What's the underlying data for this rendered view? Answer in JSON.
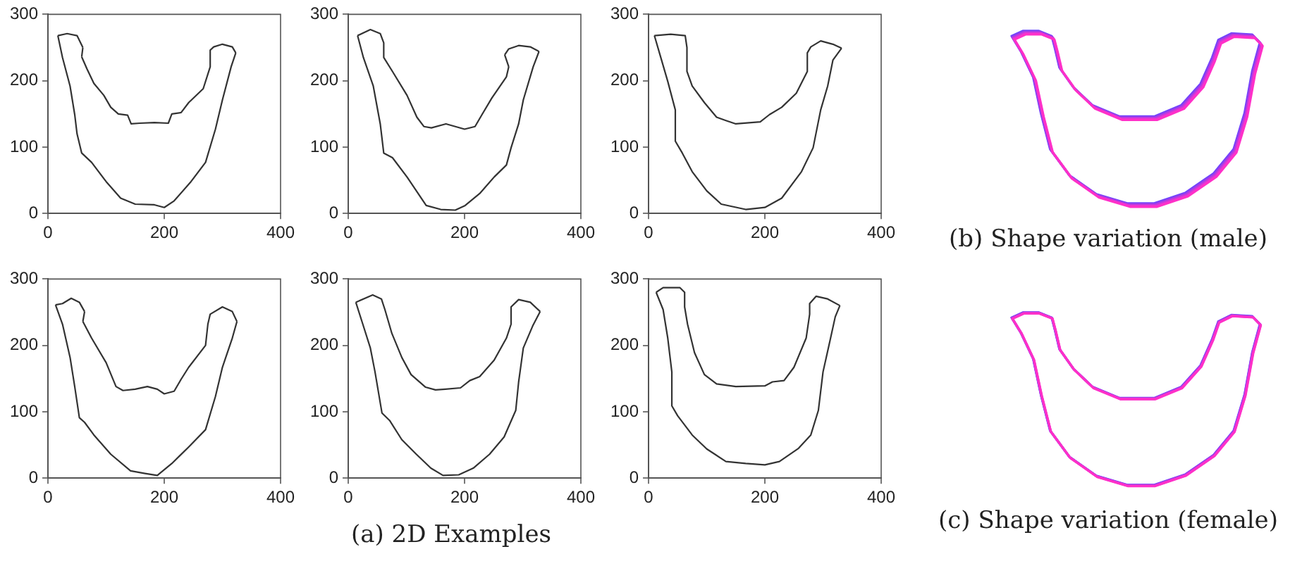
{
  "chart_data": [
    {
      "type": "line",
      "xlim": [
        0,
        400
      ],
      "xticks": [
        0,
        200,
        400
      ],
      "ylim": [
        0,
        300
      ],
      "yticks": [
        0,
        100,
        200,
        300
      ],
      "series": [
        {
          "color": "#333333",
          "x": [
            17,
            33,
            50,
            60
          ],
          "values": [
            268,
            271,
            268,
            250
          ]
        },
        {
          "color": "#333333",
          "x": [
            60,
            58
          ],
          "values": [
            250,
            236
          ]
        },
        {
          "color": "#333333",
          "x": [
            58,
            67,
            79,
            96,
            108,
            121,
            137,
            143,
            158,
            183,
            207,
            213,
            229,
            242,
            267,
            279,
            279,
            285,
            300,
            317,
            323
          ],
          "values": [
            236,
            218,
            196,
            178,
            160,
            150,
            148,
            135,
            136,
            137,
            136,
            150,
            152,
            167,
            188,
            221,
            246,
            251,
            255,
            251,
            242
          ]
        },
        {
          "color": "#333333",
          "x": [
            323,
            315,
            300,
            288,
            271,
            246,
            217,
            200,
            183,
            150,
            125,
            100,
            75,
            58,
            50,
            46,
            38,
            25,
            17
          ],
          "values": [
            242,
            221,
            171,
            127,
            77,
            48,
            19,
            9,
            13,
            14,
            23,
            48,
            77,
            91,
            120,
            149,
            192,
            235,
            268
          ]
        }
      ]
    },
    {
      "type": "line",
      "xlim": [
        0,
        400
      ],
      "xticks": [
        0,
        200,
        400
      ],
      "ylim": [
        0,
        300
      ],
      "yticks": [
        0,
        100,
        200,
        300
      ],
      "series": [
        {
          "color": "#333333",
          "x": [
            16,
            38,
            55,
            61,
            61,
            76,
            101,
            118,
            130,
            143,
            168,
            200,
            218,
            230,
            247,
            272,
            276
          ],
          "values": [
            268,
            277,
            271,
            257,
            235,
            214,
            178,
            145,
            131,
            129,
            135,
            127,
            131,
            149,
            174,
            206,
            221
          ]
        },
        {
          "color": "#333333",
          "x": [
            276,
            269
          ],
          "values": [
            221,
            239
          ]
        },
        {
          "color": "#333333",
          "x": [
            269,
            276,
            293,
            313,
            328
          ],
          "values": [
            239,
            248,
            253,
            251,
            244
          ]
        },
        {
          "color": "#333333",
          "x": [
            328,
            318,
            301,
            293,
            280,
            272,
            251,
            226,
            201,
            184,
            159,
            134,
            101,
            76,
            61,
            55,
            43,
            26,
            16
          ],
          "values": [
            244,
            221,
            171,
            135,
            99,
            73,
            55,
            30,
            12,
            5,
            6,
            12,
            55,
            84,
            91,
            135,
            192,
            235,
            268
          ]
        }
      ]
    },
    {
      "type": "line",
      "xlim": [
        0,
        400
      ],
      "xticks": [
        0,
        200,
        400
      ],
      "ylim": [
        0,
        300
      ],
      "yticks": [
        0,
        100,
        200,
        300
      ],
      "series": [
        {
          "color": "#333333",
          "x": [
            10,
            38,
            63,
            66,
            66,
            75,
            96,
            117,
            133,
            150,
            192,
            208,
            229,
            254,
            273,
            273,
            279,
            296,
            317,
            332
          ],
          "values": [
            268,
            270,
            268,
            250,
            214,
            192,
            167,
            145,
            140,
            135,
            138,
            149,
            160,
            181,
            214,
            242,
            251,
            260,
            255,
            249
          ]
        },
        {
          "color": "#333333",
          "x": [
            332,
            317,
            308,
            296,
            283,
            263,
            229,
            200,
            167,
            125,
            100,
            75,
            58,
            46,
            46,
            33,
            21,
            10
          ],
          "values": [
            249,
            231,
            192,
            156,
            99,
            63,
            23,
            9,
            6,
            14,
            34,
            63,
            91,
            109,
            156,
            199,
            235,
            268
          ]
        }
      ]
    },
    {
      "type": "line",
      "xlim": [
        0,
        400
      ],
      "xticks": [
        0,
        200,
        400
      ],
      "ylim": [
        0,
        300
      ],
      "yticks": [
        0,
        100,
        200,
        300
      ],
      "series": [
        {
          "color": "#333333",
          "x": [
            13,
            25,
            40,
            54,
            63
          ],
          "values": [
            261,
            263,
            271,
            265,
            251
          ]
        },
        {
          "color": "#333333",
          "x": [
            63,
            60
          ],
          "values": [
            251,
            236
          ]
        },
        {
          "color": "#333333",
          "x": [
            60,
            75,
            100,
            117,
            129,
            150,
            171,
            188,
            200,
            217,
            229,
            242,
            271,
            275,
            279,
            300,
            317,
            325
          ],
          "values": [
            236,
            211,
            174,
            138,
            132,
            134,
            138,
            134,
            127,
            131,
            149,
            167,
            200,
            232,
            247,
            258,
            251,
            236
          ]
        },
        {
          "color": "#333333",
          "x": [
            325,
            317,
            300,
            288,
            271,
            242,
            213,
            188,
            167,
            142,
            108,
            79,
            63,
            54,
            46,
            38,
            25,
            13
          ],
          "values": [
            236,
            211,
            167,
            123,
            73,
            47,
            22,
            4,
            7,
            11,
            36,
            65,
            84,
            91,
            138,
            182,
            232,
            261
          ]
        }
      ]
    },
    {
      "type": "line",
      "xlim": [
        0,
        400
      ],
      "xticks": [
        0,
        200,
        400
      ],
      "ylim": [
        0,
        300
      ],
      "yticks": [
        0,
        100,
        200,
        300
      ],
      "series": [
        {
          "color": "#333333",
          "x": [
            13,
            42,
            57,
            63,
            75,
            92,
            108,
            133,
            150,
            167,
            193,
            209,
            226,
            251,
            272,
            280,
            280,
            293,
            313,
            330
          ],
          "values": [
            265,
            276,
            270,
            254,
            218,
            182,
            156,
            137,
            133,
            134,
            136,
            147,
            153,
            178,
            211,
            232,
            258,
            269,
            265,
            251
          ]
        },
        {
          "color": "#333333",
          "x": [
            330,
            317,
            301,
            293,
            288,
            268,
            243,
            215,
            190,
            163,
            142,
            117,
            92,
            71,
            58,
            46,
            38,
            25,
            13
          ],
          "values": [
            251,
            229,
            196,
            145,
            102,
            62,
            36,
            15,
            5,
            4,
            15,
            36,
            58,
            87,
            98,
            160,
            196,
            232,
            265
          ]
        }
      ]
    },
    {
      "type": "line",
      "xlim": [
        0,
        400
      ],
      "xticks": [
        0,
        200,
        400
      ],
      "ylim": [
        0,
        300
      ],
      "yticks": [
        0,
        100,
        200,
        300
      ],
      "series": [
        {
          "color": "#333333",
          "x": [
            13,
            25,
            54,
            62,
            62,
            67,
            79,
            96,
            117,
            150,
            200,
            213,
            233,
            250,
            271,
            277,
            277,
            288,
            308,
            329
          ],
          "values": [
            280,
            287,
            287,
            280,
            258,
            232,
            189,
            156,
            142,
            138,
            139,
            145,
            147,
            167,
            211,
            247,
            263,
            274,
            270,
            260
          ]
        },
        {
          "color": "#333333",
          "x": [
            329,
            321,
            313,
            300,
            292,
            279,
            258,
            225,
            200,
            167,
            133,
            100,
            75,
            50,
            40,
            40,
            33,
            25,
            13
          ],
          "values": [
            260,
            243,
            211,
            160,
            102,
            65,
            45,
            25,
            20,
            22,
            25,
            44,
            65,
            94,
            109,
            160,
            211,
            254,
            280
          ]
        }
      ]
    },
    {
      "type": "other",
      "title": "(a) 2D Examples"
    },
    {
      "type": "other",
      "title": "(b) Shape variation (male)"
    },
    {
      "type": "other",
      "title": "(c) Shape variation (female)"
    }
  ]
}
